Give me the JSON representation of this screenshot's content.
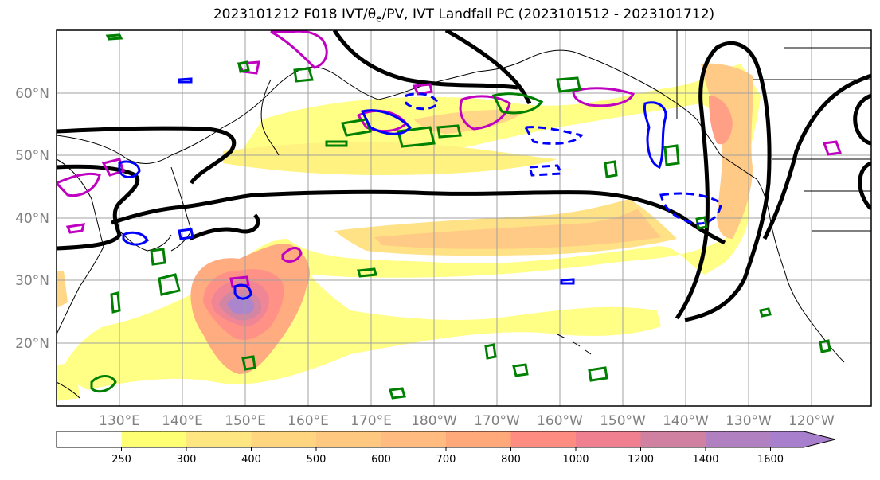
{
  "title": {
    "prefix": "2023101212 F018 IVT/θ",
    "sub": "e",
    "suffix": "/PV, IVT Landfall PC (2023101512 - 2023101712)"
  },
  "map": {
    "lon_labels": [
      "130°E",
      "140°E",
      "150°E",
      "160°E",
      "170°E",
      "180°W",
      "170°W",
      "160°W",
      "150°W",
      "140°W",
      "130°W",
      "120°W"
    ],
    "lat_labels": [
      "60°N",
      "50°N",
      "40°N",
      "30°N",
      "20°N"
    ],
    "grid": true
  },
  "colorbar": {
    "levels": [
      "250",
      "300",
      "400",
      "500",
      "600",
      "700",
      "800",
      "1000",
      "1200",
      "1400",
      "1600"
    ],
    "colors": [
      "#ffffff",
      "#ffff73",
      "#ffe680",
      "#ffd580",
      "#ffc880",
      "#ffbb80",
      "#ffa87a",
      "#ff8c80",
      "#f08090",
      "#d080a0",
      "#b080c0",
      "#a77fcc"
    ],
    "extend": "max"
  }
}
